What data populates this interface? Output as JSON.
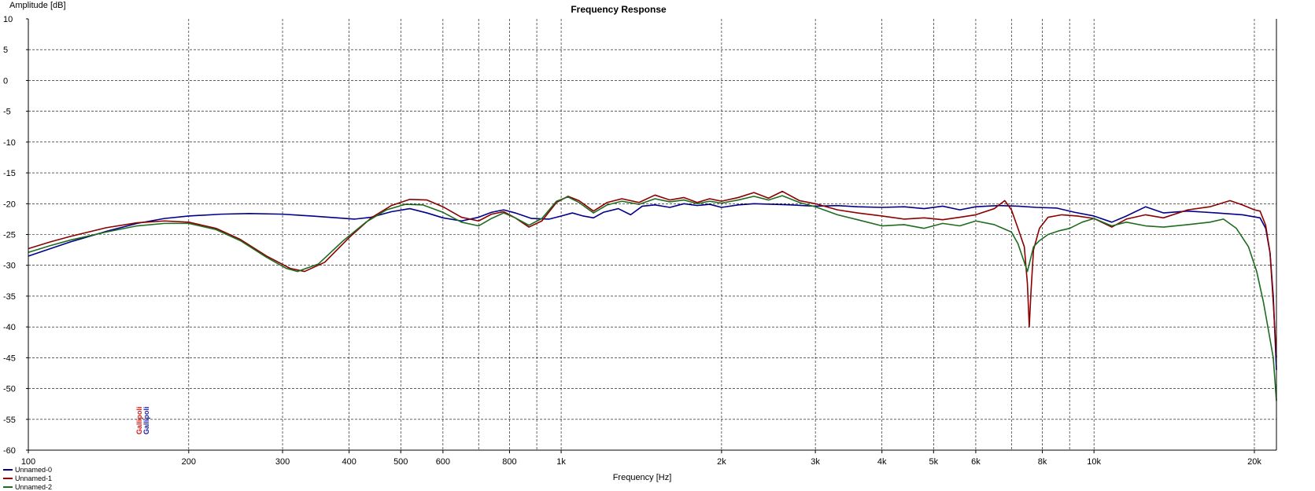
{
  "chart_data": {
    "type": "line",
    "title": "Frequency Response",
    "xlabel": "Frequency [Hz]",
    "ylabel": "Amplitude [dB]",
    "x_scale": "log",
    "xlim": [
      100,
      22000
    ],
    "ylim": [
      -60,
      10
    ],
    "grid": true,
    "legend_position": "bottom-left",
    "y_ticks": [
      10,
      5,
      0,
      -5,
      -10,
      -15,
      -20,
      -25,
      -30,
      -35,
      -40,
      -45,
      -50,
      -55,
      -60
    ],
    "x_ticks": [
      {
        "value": 100,
        "label": "100"
      },
      {
        "value": 200,
        "label": "200"
      },
      {
        "value": 300,
        "label": "300"
      },
      {
        "value": 400,
        "label": "400"
      },
      {
        "value": 500,
        "label": "500"
      },
      {
        "value": 600,
        "label": "600"
      },
      {
        "value": 800,
        "label": "800"
      },
      {
        "value": 1000,
        "label": "1k"
      },
      {
        "value": 2000,
        "label": "2k"
      },
      {
        "value": 3000,
        "label": "3k"
      },
      {
        "value": 4000,
        "label": "4k"
      },
      {
        "value": 5000,
        "label": "5k"
      },
      {
        "value": 6000,
        "label": "6k"
      },
      {
        "value": 8000,
        "label": "8k"
      },
      {
        "value": 10000,
        "label": "10k"
      },
      {
        "value": 20000,
        "label": "20k"
      }
    ],
    "x_gridlines": [
      100,
      200,
      300,
      400,
      500,
      600,
      700,
      800,
      900,
      1000,
      2000,
      3000,
      4000,
      5000,
      6000,
      7000,
      8000,
      9000,
      10000,
      20000
    ],
    "logo": "Gallipoli",
    "series": [
      {
        "name": "Unnamed-0",
        "color": "#00008b",
        "points": [
          [
            100,
            -28.5
          ],
          [
            110,
            -27.3
          ],
          [
            120,
            -26.2
          ],
          [
            140,
            -24.5
          ],
          [
            160,
            -23.2
          ],
          [
            180,
            -22.4
          ],
          [
            200,
            -22.0
          ],
          [
            230,
            -21.7
          ],
          [
            260,
            -21.6
          ],
          [
            300,
            -21.7
          ],
          [
            340,
            -22.0
          ],
          [
            380,
            -22.3
          ],
          [
            410,
            -22.5
          ],
          [
            440,
            -22.2
          ],
          [
            480,
            -21.3
          ],
          [
            520,
            -20.8
          ],
          [
            560,
            -21.5
          ],
          [
            600,
            -22.3
          ],
          [
            650,
            -22.8
          ],
          [
            700,
            -22.2
          ],
          [
            740,
            -21.4
          ],
          [
            780,
            -21.0
          ],
          [
            820,
            -21.5
          ],
          [
            880,
            -22.4
          ],
          [
            950,
            -22.5
          ],
          [
            1000,
            -22.0
          ],
          [
            1050,
            -21.5
          ],
          [
            1100,
            -22.0
          ],
          [
            1150,
            -22.3
          ],
          [
            1200,
            -21.4
          ],
          [
            1280,
            -20.8
          ],
          [
            1350,
            -21.8
          ],
          [
            1420,
            -20.4
          ],
          [
            1500,
            -20.2
          ],
          [
            1600,
            -20.6
          ],
          [
            1700,
            -20.0
          ],
          [
            1800,
            -20.3
          ],
          [
            1900,
            -20.1
          ],
          [
            2000,
            -20.6
          ],
          [
            2150,
            -20.2
          ],
          [
            2300,
            -20.0
          ],
          [
            2500,
            -20.1
          ],
          [
            2700,
            -20.2
          ],
          [
            3000,
            -20.4
          ],
          [
            3300,
            -20.3
          ],
          [
            3600,
            -20.5
          ],
          [
            4000,
            -20.6
          ],
          [
            4400,
            -20.5
          ],
          [
            4800,
            -20.8
          ],
          [
            5200,
            -20.4
          ],
          [
            5600,
            -21.0
          ],
          [
            6000,
            -20.5
          ],
          [
            6600,
            -20.3
          ],
          [
            7200,
            -20.4
          ],
          [
            7800,
            -20.6
          ],
          [
            8500,
            -20.7
          ],
          [
            9200,
            -21.4
          ],
          [
            10000,
            -22.0
          ],
          [
            10800,
            -23.0
          ],
          [
            11500,
            -22.0
          ],
          [
            12500,
            -20.5
          ],
          [
            13500,
            -21.5
          ],
          [
            15000,
            -21.2
          ],
          [
            17000,
            -21.5
          ],
          [
            19000,
            -21.8
          ],
          [
            20500,
            -22.3
          ],
          [
            21000,
            -24.0
          ],
          [
            21400,
            -28.0
          ],
          [
            21700,
            -35.0
          ],
          [
            21900,
            -43.0
          ],
          [
            22000,
            -47.0
          ]
        ]
      },
      {
        "name": "Unnamed-1",
        "color": "#8b0000",
        "points": [
          [
            100,
            -27.3
          ],
          [
            110,
            -26.2
          ],
          [
            120,
            -25.3
          ],
          [
            140,
            -23.9
          ],
          [
            160,
            -23.1
          ],
          [
            180,
            -22.8
          ],
          [
            200,
            -23.0
          ],
          [
            225,
            -24.0
          ],
          [
            250,
            -25.8
          ],
          [
            280,
            -28.5
          ],
          [
            310,
            -30.5
          ],
          [
            330,
            -31.0
          ],
          [
            360,
            -29.5
          ],
          [
            400,
            -25.5
          ],
          [
            440,
            -22.3
          ],
          [
            480,
            -20.3
          ],
          [
            520,
            -19.3
          ],
          [
            560,
            -19.4
          ],
          [
            600,
            -20.5
          ],
          [
            650,
            -22.2
          ],
          [
            700,
            -22.8
          ],
          [
            740,
            -21.7
          ],
          [
            780,
            -21.3
          ],
          [
            820,
            -22.3
          ],
          [
            870,
            -23.8
          ],
          [
            920,
            -22.8
          ],
          [
            980,
            -19.8
          ],
          [
            1030,
            -18.8
          ],
          [
            1080,
            -19.5
          ],
          [
            1150,
            -21.2
          ],
          [
            1220,
            -19.8
          ],
          [
            1300,
            -19.2
          ],
          [
            1400,
            -19.8
          ],
          [
            1500,
            -18.6
          ],
          [
            1600,
            -19.4
          ],
          [
            1700,
            -19.0
          ],
          [
            1800,
            -19.8
          ],
          [
            1900,
            -19.2
          ],
          [
            2000,
            -19.6
          ],
          [
            2150,
            -19.0
          ],
          [
            2300,
            -18.2
          ],
          [
            2450,
            -19.1
          ],
          [
            2600,
            -18.0
          ],
          [
            2800,
            -19.5
          ],
          [
            3000,
            -20.0
          ],
          [
            3300,
            -21.0
          ],
          [
            3600,
            -21.5
          ],
          [
            4000,
            -22.0
          ],
          [
            4400,
            -22.5
          ],
          [
            4800,
            -22.3
          ],
          [
            5200,
            -22.6
          ],
          [
            5600,
            -22.2
          ],
          [
            6000,
            -21.8
          ],
          [
            6500,
            -20.8
          ],
          [
            6800,
            -19.5
          ],
          [
            7000,
            -21.0
          ],
          [
            7200,
            -24.0
          ],
          [
            7400,
            -27.0
          ],
          [
            7500,
            -33.0
          ],
          [
            7560,
            -40.0
          ],
          [
            7620,
            -34.0
          ],
          [
            7700,
            -27.5
          ],
          [
            7900,
            -24.0
          ],
          [
            8200,
            -22.2
          ],
          [
            8700,
            -21.8
          ],
          [
            9300,
            -22.0
          ],
          [
            10000,
            -22.4
          ],
          [
            10800,
            -23.8
          ],
          [
            11500,
            -22.5
          ],
          [
            12500,
            -21.8
          ],
          [
            13500,
            -22.3
          ],
          [
            15000,
            -21.0
          ],
          [
            16500,
            -20.5
          ],
          [
            18000,
            -19.5
          ],
          [
            19000,
            -20.2
          ],
          [
            20000,
            -21.0
          ],
          [
            20500,
            -21.2
          ],
          [
            21000,
            -23.5
          ],
          [
            21400,
            -28.0
          ],
          [
            21700,
            -36.0
          ],
          [
            21900,
            -42.0
          ],
          [
            22000,
            -45.0
          ]
        ]
      },
      {
        "name": "Unnamed-2",
        "color": "#1f6b1f",
        "points": [
          [
            100,
            -27.9
          ],
          [
            110,
            -26.8
          ],
          [
            120,
            -25.9
          ],
          [
            140,
            -24.6
          ],
          [
            160,
            -23.6
          ],
          [
            180,
            -23.2
          ],
          [
            200,
            -23.2
          ],
          [
            225,
            -24.2
          ],
          [
            250,
            -26.0
          ],
          [
            280,
            -28.7
          ],
          [
            305,
            -30.5
          ],
          [
            320,
            -31.0
          ],
          [
            350,
            -29.8
          ],
          [
            390,
            -26.0
          ],
          [
            430,
            -23.0
          ],
          [
            470,
            -21.0
          ],
          [
            510,
            -20.1
          ],
          [
            550,
            -20.2
          ],
          [
            600,
            -21.4
          ],
          [
            650,
            -23.0
          ],
          [
            700,
            -23.6
          ],
          [
            740,
            -22.4
          ],
          [
            780,
            -21.5
          ],
          [
            820,
            -22.3
          ],
          [
            870,
            -23.5
          ],
          [
            920,
            -22.4
          ],
          [
            980,
            -19.6
          ],
          [
            1030,
            -18.9
          ],
          [
            1080,
            -19.8
          ],
          [
            1150,
            -21.5
          ],
          [
            1220,
            -20.2
          ],
          [
            1300,
            -19.6
          ],
          [
            1400,
            -20.1
          ],
          [
            1500,
            -19.2
          ],
          [
            1600,
            -19.7
          ],
          [
            1700,
            -19.4
          ],
          [
            1800,
            -20.0
          ],
          [
            1900,
            -19.6
          ],
          [
            2000,
            -19.9
          ],
          [
            2150,
            -19.4
          ],
          [
            2300,
            -18.8
          ],
          [
            2450,
            -19.4
          ],
          [
            2600,
            -18.7
          ],
          [
            2800,
            -19.8
          ],
          [
            3000,
            -20.5
          ],
          [
            3300,
            -21.8
          ],
          [
            3600,
            -22.6
          ],
          [
            4000,
            -23.6
          ],
          [
            4400,
            -23.4
          ],
          [
            4800,
            -24.0
          ],
          [
            5200,
            -23.2
          ],
          [
            5600,
            -23.6
          ],
          [
            6000,
            -22.8
          ],
          [
            6500,
            -23.4
          ],
          [
            7000,
            -24.6
          ],
          [
            7200,
            -26.5
          ],
          [
            7500,
            -31.0
          ],
          [
            7700,
            -27.0
          ],
          [
            7900,
            -26.0
          ],
          [
            8200,
            -25.0
          ],
          [
            8600,
            -24.4
          ],
          [
            9000,
            -24.0
          ],
          [
            9500,
            -23.0
          ],
          [
            10000,
            -22.4
          ],
          [
            10800,
            -23.6
          ],
          [
            11500,
            -23.0
          ],
          [
            12500,
            -23.6
          ],
          [
            13500,
            -23.8
          ],
          [
            15000,
            -23.4
          ],
          [
            16500,
            -23.0
          ],
          [
            17500,
            -22.5
          ],
          [
            18500,
            -24.0
          ],
          [
            19500,
            -27.0
          ],
          [
            20200,
            -31.0
          ],
          [
            20800,
            -36.0
          ],
          [
            21300,
            -41.0
          ],
          [
            21700,
            -45.0
          ],
          [
            22000,
            -52.0
          ]
        ]
      }
    ]
  }
}
